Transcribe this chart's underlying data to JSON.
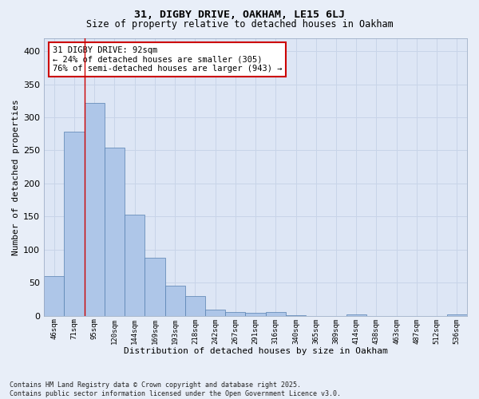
{
  "title_line1": "31, DIGBY DRIVE, OAKHAM, LE15 6LJ",
  "title_line2": "Size of property relative to detached houses in Oakham",
  "xlabel": "Distribution of detached houses by size in Oakham",
  "ylabel": "Number of detached properties",
  "categories": [
    "46sqm",
    "71sqm",
    "95sqm",
    "120sqm",
    "144sqm",
    "169sqm",
    "193sqm",
    "218sqm",
    "242sqm",
    "267sqm",
    "291sqm",
    "316sqm",
    "340sqm",
    "365sqm",
    "389sqm",
    "414sqm",
    "438sqm",
    "463sqm",
    "487sqm",
    "512sqm",
    "536sqm"
  ],
  "values": [
    60,
    278,
    322,
    254,
    153,
    88,
    46,
    30,
    10,
    6,
    5,
    6,
    1,
    0,
    0,
    2,
    0,
    0,
    0,
    0,
    2
  ],
  "bar_color": "#aec6e8",
  "bar_edge_color": "#5580b0",
  "annotation_text": "31 DIGBY DRIVE: 92sqm\n← 24% of detached houses are smaller (305)\n76% of semi-detached houses are larger (943) →",
  "annotation_box_facecolor": "#ffffff",
  "annotation_box_edgecolor": "#cc0000",
  "red_line_x": 1.5,
  "ylim": [
    0,
    420
  ],
  "yticks": [
    0,
    50,
    100,
    150,
    200,
    250,
    300,
    350,
    400
  ],
  "grid_color": "#c8d4e8",
  "plot_bg_color": "#dde6f5",
  "fig_bg_color": "#e8eef8",
  "footnote": "Contains HM Land Registry data © Crown copyright and database right 2025.\nContains public sector information licensed under the Open Government Licence v3.0."
}
